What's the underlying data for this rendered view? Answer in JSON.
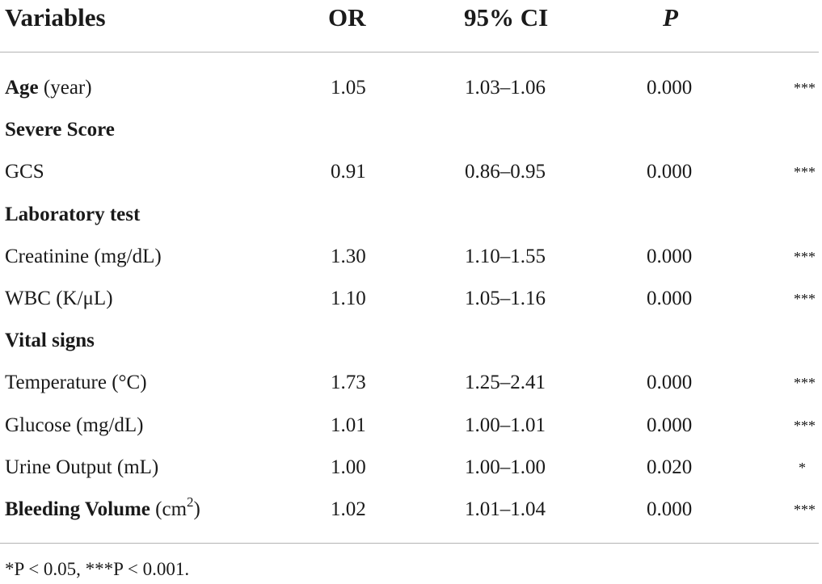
{
  "header": {
    "variables": "Variables",
    "or": "OR",
    "ci": "95% CI",
    "p": "P"
  },
  "rows": [
    {
      "type": "data",
      "label_bold": "Age",
      "label_rest": " (year)",
      "or": "1.05",
      "ci": "1.03–1.06",
      "p": "0.000",
      "sig": "***"
    },
    {
      "type": "group",
      "label": "Severe Score"
    },
    {
      "type": "data",
      "label_bold": "",
      "label_rest": "GCS",
      "or": "0.91",
      "ci": "0.86–0.95",
      "p": "0.000",
      "sig": "***"
    },
    {
      "type": "group",
      "label": "Laboratory test"
    },
    {
      "type": "data",
      "label_bold": "",
      "label_rest": "Creatinine (mg/dL)",
      "or": "1.30",
      "ci": "1.10–1.55",
      "p": "0.000",
      "sig": "***"
    },
    {
      "type": "data",
      "label_bold": "",
      "label_rest": "WBC (K/μL)",
      "or": "1.10",
      "ci": "1.05–1.16",
      "p": "0.000",
      "sig": "***"
    },
    {
      "type": "group",
      "label": "Vital signs"
    },
    {
      "type": "data",
      "label_bold": "",
      "label_rest": "Temperature (°C)",
      "or": "1.73",
      "ci": "1.25–2.41",
      "p": "0.000",
      "sig": "***"
    },
    {
      "type": "data",
      "label_bold": "",
      "label_rest": "Glucose (mg/dL)",
      "or": "1.01",
      "ci": "1.00–1.01",
      "p": "0.000",
      "sig": "***"
    },
    {
      "type": "data",
      "label_bold": "",
      "label_rest": "Urine Output (mL)",
      "or": "1.00",
      "ci": "1.00–1.00",
      "p": "0.020",
      "sig": "*"
    },
    {
      "type": "data",
      "label_bold": "Bleeding Volume",
      "label_rest": " (cm",
      "label_sup": "2",
      "label_end": ")",
      "or": "1.02",
      "ci": "1.01–1.04",
      "p": "0.000",
      "sig": "***"
    }
  ],
  "footnote": "*P < 0.05, ***P < 0.001."
}
